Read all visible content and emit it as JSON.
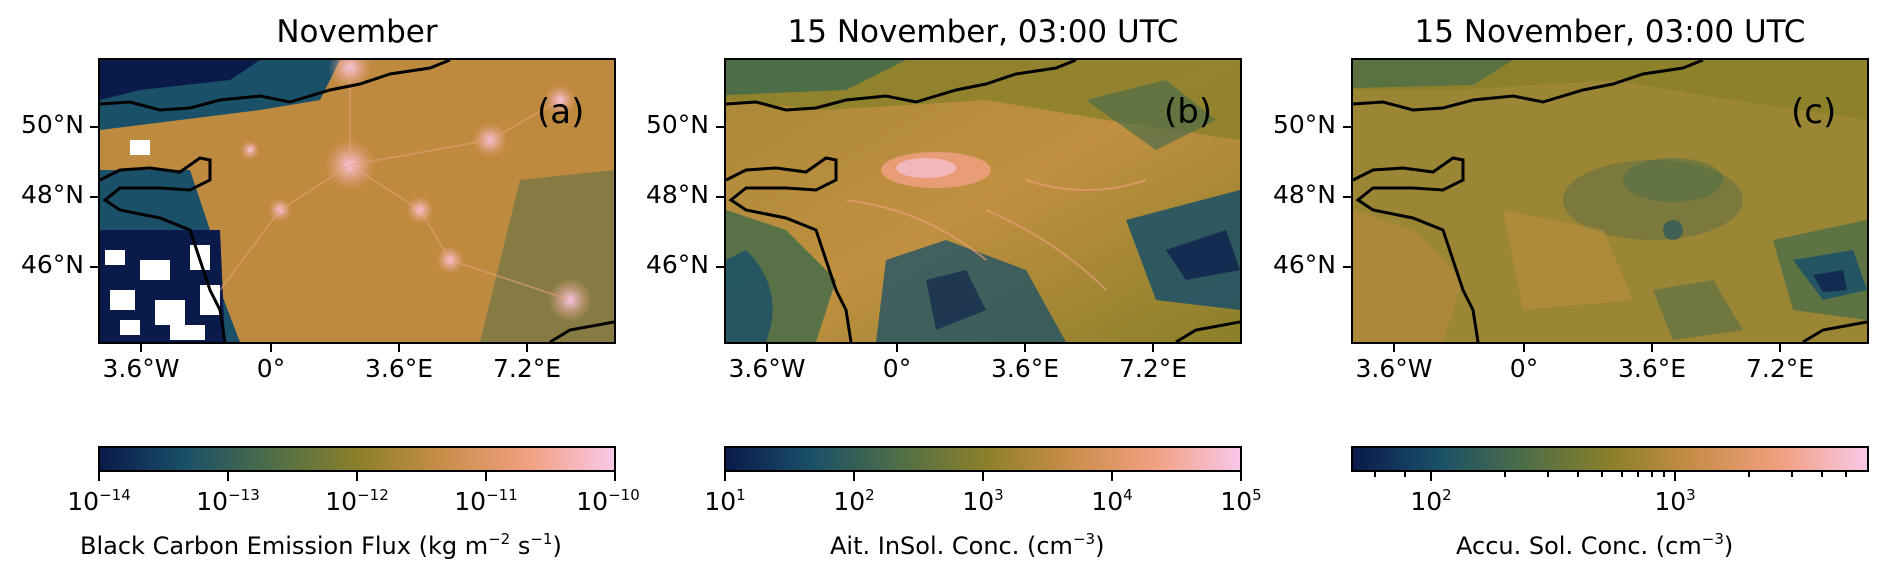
{
  "panels": [
    {
      "title": "November",
      "label": "(a)",
      "colorbar_label": "Black Carbon Emission Flux (kg m",
      "colorbar_label_exp1": "−2",
      "colorbar_label_mid": " s",
      "colorbar_label_exp2": "−1",
      "colorbar_label_end": ")",
      "colorbar_ticks": [
        {
          "base": "10",
          "exp": "−14"
        },
        {
          "base": "10",
          "exp": "−13"
        },
        {
          "base": "10",
          "exp": "−12"
        },
        {
          "base": "10",
          "exp": "−11"
        },
        {
          "base": "10",
          "exp": "−10"
        }
      ]
    },
    {
      "title": "15 November, 03:00 UTC",
      "label": "(b)",
      "colorbar_label": "Ait. InSol. Conc. (cm",
      "colorbar_label_exp1": "−3",
      "colorbar_label_end": ")",
      "colorbar_ticks": [
        {
          "base": "10",
          "exp": "1"
        },
        {
          "base": "10",
          "exp": "2"
        },
        {
          "base": "10",
          "exp": "3"
        },
        {
          "base": "10",
          "exp": "4"
        },
        {
          "base": "10",
          "exp": "5"
        }
      ]
    },
    {
      "title": "15 November, 03:00 UTC",
      "label": "(c)",
      "colorbar_label": "Accu. Sol. Conc. (cm",
      "colorbar_label_exp1": "−3",
      "colorbar_label_end": ")",
      "colorbar_ticks": [
        {
          "base": "10",
          "exp": "2"
        },
        {
          "base": "10",
          "exp": "3"
        }
      ]
    }
  ],
  "lat_labels": [
    "50°N",
    "48°N",
    "46°N"
  ],
  "lon_labels": [
    "3.6°W",
    "0°",
    "3.6°E",
    "7.2°E"
  ],
  "colormap": [
    "#0a1a4a",
    "#1a5068",
    "#4e6e48",
    "#8a7f2a",
    "#c98d4a",
    "#f0a080",
    "#f8c8e8"
  ]
}
